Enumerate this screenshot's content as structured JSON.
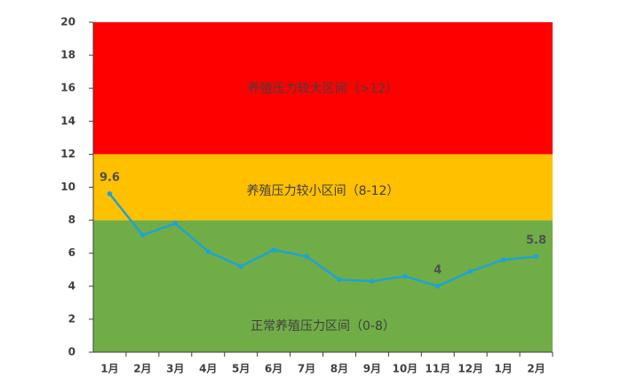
{
  "chart_data": {
    "type": "line",
    "categories": [
      "1月",
      "2月",
      "3月",
      "4月",
      "5月",
      "6月",
      "7月",
      "8月",
      "9月",
      "10月",
      "11月",
      "12月",
      "1月",
      "2月"
    ],
    "series": [
      {
        "color": "#1fa3d3",
        "values": [
          9.6,
          7.1,
          7.8,
          6.1,
          5.2,
          6.2,
          5.8,
          4.4,
          4.3,
          4.6,
          4.0,
          4.9,
          5.6,
          5.8
        ],
        "value_labels": [
          "9.6",
          null,
          null,
          null,
          null,
          null,
          null,
          null,
          null,
          null,
          "4",
          null,
          null,
          "5.8"
        ]
      }
    ],
    "bands": [
      {
        "from": 0,
        "to": 8,
        "color": "#70ad47",
        "label": "正常养殖压力区间（0-8）"
      },
      {
        "from": 8,
        "to": 12,
        "color": "#ffc000",
        "label": "养殖压力较小区间（8-12）"
      },
      {
        "from": 12,
        "to": 20,
        "color": "#ff0000",
        "label": "养殖压力较大区间（>12）"
      }
    ],
    "ylim": [
      0,
      20
    ],
    "yticks": [
      0,
      2,
      4,
      6,
      8,
      10,
      12,
      14,
      16,
      18,
      20
    ]
  }
}
